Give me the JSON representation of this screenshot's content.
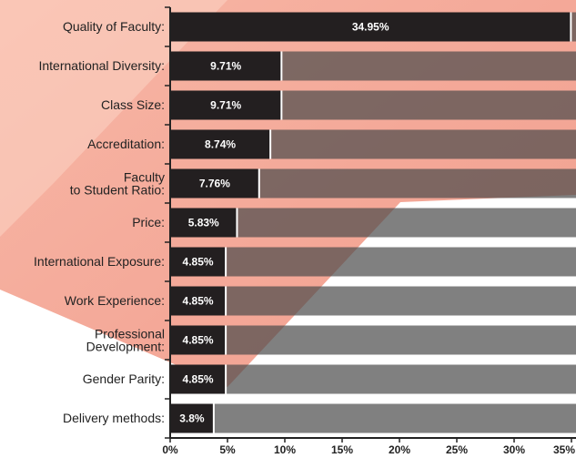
{
  "chart_data": {
    "type": "hbar",
    "categories": [
      "Quality of Faculty:",
      "International Diversity:",
      "Class Size:",
      "Accreditation:",
      "Faculty\nto Student Ratio:",
      "Price:",
      "International Exposure:",
      "Work Experience:",
      "Professional\nDevelopment:",
      "Gender Parity:",
      "Delivery methods:"
    ],
    "values": [
      34.95,
      9.71,
      9.71,
      8.74,
      7.76,
      5.83,
      4.85,
      4.85,
      4.85,
      4.85,
      3.8
    ],
    "value_labels": [
      "34.95%",
      "9.71%",
      "9.71%",
      "8.74%",
      "7.76%",
      "5.83%",
      "4.85%",
      "4.85%",
      "4.85%",
      "4.85%",
      "3.8%"
    ],
    "color": "#231f20",
    "xlim": [
      0,
      35
    ],
    "xticks": [
      {
        "value": 0,
        "label": "0%"
      },
      {
        "value": 5,
        "label": "5%"
      },
      {
        "value": 10,
        "label": "10%"
      },
      {
        "value": 15,
        "label": "15%"
      },
      {
        "value": 20,
        "label": "20%"
      },
      {
        "value": 25,
        "label": "25%"
      },
      {
        "value": 30,
        "label": "30%"
      },
      {
        "value": 35,
        "label": "35%"
      }
    ]
  }
}
